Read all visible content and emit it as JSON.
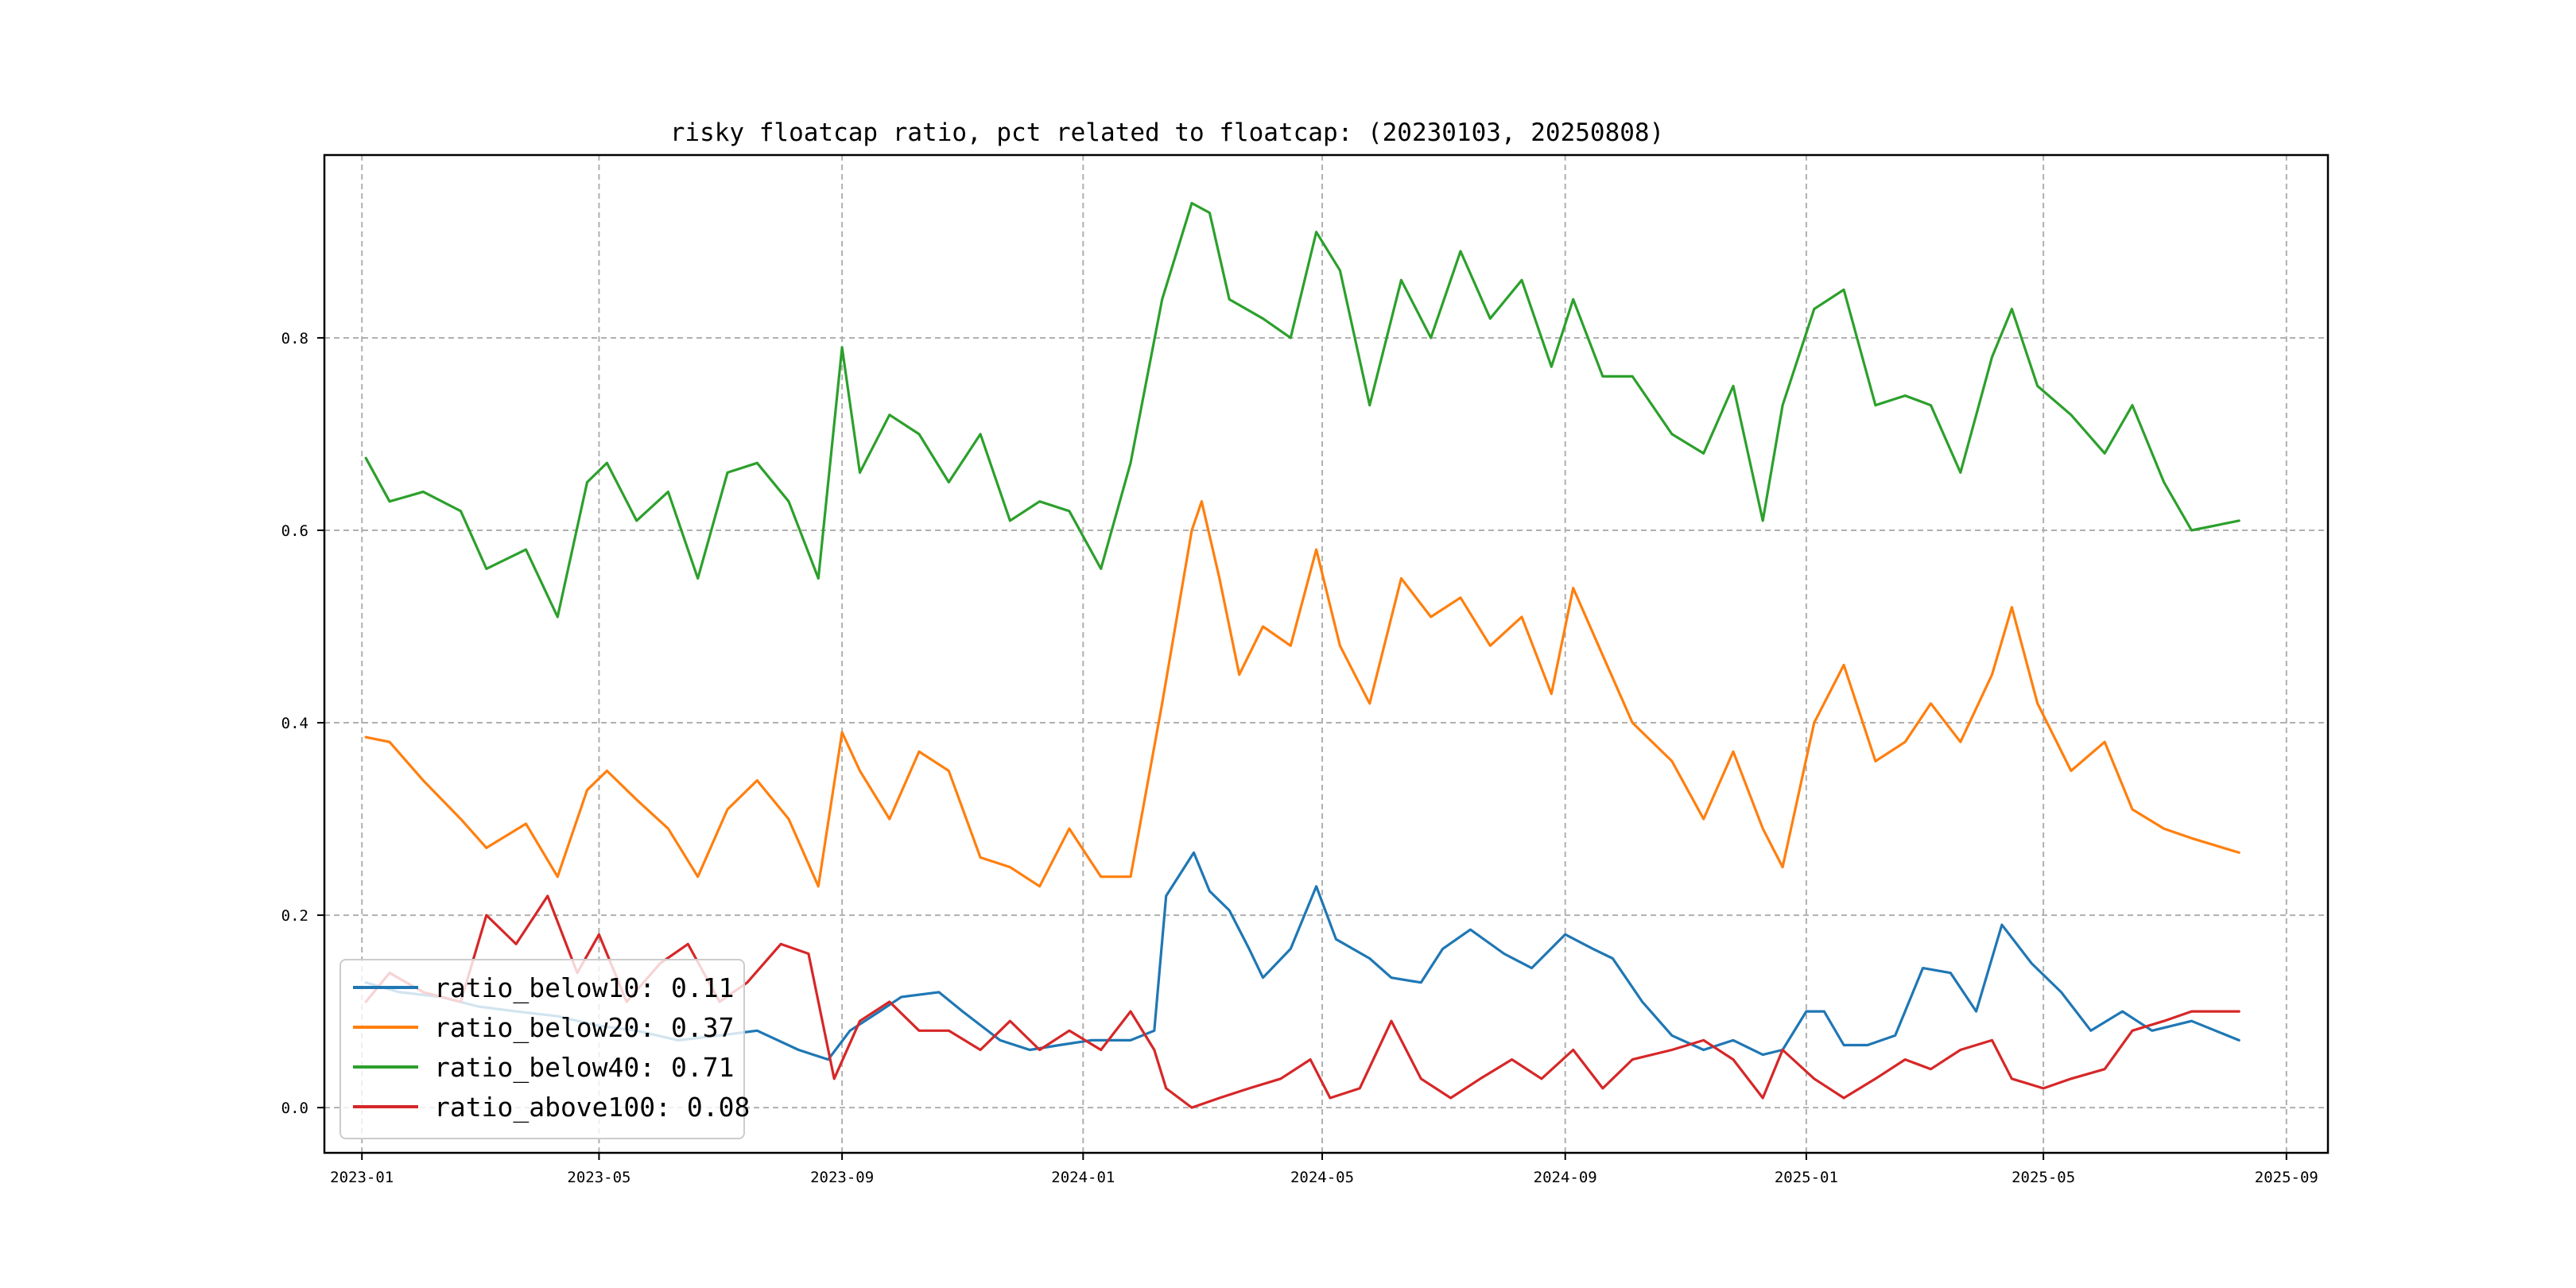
{
  "chart_data": {
    "type": "line",
    "title": "risky floatcap ratio, pct related to floatcap: (20230103, 20250808)",
    "xlabel": "",
    "ylabel": "",
    "x_range": [
      "2022-12-13",
      "2025-09-22"
    ],
    "ylim": [
      -0.047,
      0.99
    ],
    "grid": true,
    "legend_position": "lower-left",
    "x_ticks": [
      {
        "label": "2023-01",
        "date": "2023-01-01"
      },
      {
        "label": "2023-05",
        "date": "2023-05-01"
      },
      {
        "label": "2023-09",
        "date": "2023-09-01"
      },
      {
        "label": "2024-01",
        "date": "2024-01-01"
      },
      {
        "label": "2024-05",
        "date": "2024-05-01"
      },
      {
        "label": "2024-09",
        "date": "2024-09-01"
      },
      {
        "label": "2025-01",
        "date": "2025-01-01"
      },
      {
        "label": "2025-05",
        "date": "2025-05-01"
      },
      {
        "label": "2025-09",
        "date": "2025-09-01"
      }
    ],
    "y_ticks": [
      {
        "label": "0.0",
        "value": 0.0
      },
      {
        "label": "0.2",
        "value": 0.2
      },
      {
        "label": "0.4",
        "value": 0.4
      },
      {
        "label": "0.6",
        "value": 0.6
      },
      {
        "label": "0.8",
        "value": 0.8
      }
    ],
    "series": [
      {
        "name": "ratio_below10",
        "legend_label": "ratio_below10: 0.11",
        "color": "#1f77b4",
        "points": [
          [
            "2023-01-03",
            0.13
          ],
          [
            "2023-01-20",
            0.12
          ],
          [
            "2023-02-10",
            0.115
          ],
          [
            "2023-03-01",
            0.105
          ],
          [
            "2023-03-20",
            0.1
          ],
          [
            "2023-04-10",
            0.095
          ],
          [
            "2023-05-01",
            0.085
          ],
          [
            "2023-05-20",
            0.08
          ],
          [
            "2023-06-10",
            0.07
          ],
          [
            "2023-07-01",
            0.075
          ],
          [
            "2023-07-20",
            0.08
          ],
          [
            "2023-08-10",
            0.06
          ],
          [
            "2023-08-25",
            0.05
          ],
          [
            "2023-09-05",
            0.08
          ],
          [
            "2023-09-20",
            0.1
          ],
          [
            "2023-10-01",
            0.115
          ],
          [
            "2023-10-20",
            0.12
          ],
          [
            "2023-11-01",
            0.1
          ],
          [
            "2023-11-20",
            0.07
          ],
          [
            "2023-12-05",
            0.06
          ],
          [
            "2023-12-20",
            0.065
          ],
          [
            "2024-01-05",
            0.07
          ],
          [
            "2024-01-25",
            0.07
          ],
          [
            "2024-02-06",
            0.08
          ],
          [
            "2024-02-12",
            0.22
          ],
          [
            "2024-02-26",
            0.265
          ],
          [
            "2024-03-05",
            0.225
          ],
          [
            "2024-03-15",
            0.205
          ],
          [
            "2024-03-25",
            0.165
          ],
          [
            "2024-04-01",
            0.135
          ],
          [
            "2024-04-15",
            0.165
          ],
          [
            "2024-04-28",
            0.23
          ],
          [
            "2024-05-08",
            0.175
          ],
          [
            "2024-05-25",
            0.155
          ],
          [
            "2024-06-05",
            0.135
          ],
          [
            "2024-06-20",
            0.13
          ],
          [
            "2024-07-01",
            0.165
          ],
          [
            "2024-07-15",
            0.185
          ],
          [
            "2024-08-01",
            0.16
          ],
          [
            "2024-08-15",
            0.145
          ],
          [
            "2024-09-01",
            0.18
          ],
          [
            "2024-09-15",
            0.165
          ],
          [
            "2024-09-25",
            0.155
          ],
          [
            "2024-10-10",
            0.11
          ],
          [
            "2024-10-25",
            0.075
          ],
          [
            "2024-11-10",
            0.06
          ],
          [
            "2024-11-25",
            0.07
          ],
          [
            "2024-12-10",
            0.055
          ],
          [
            "2024-12-20",
            0.06
          ],
          [
            "2025-01-01",
            0.1
          ],
          [
            "2025-01-10",
            0.1
          ],
          [
            "2025-01-20",
            0.065
          ],
          [
            "2025-02-01",
            0.065
          ],
          [
            "2025-02-15",
            0.075
          ],
          [
            "2025-03-01",
            0.145
          ],
          [
            "2025-03-15",
            0.14
          ],
          [
            "2025-03-28",
            0.1
          ],
          [
            "2025-04-10",
            0.19
          ],
          [
            "2025-04-25",
            0.15
          ],
          [
            "2025-05-10",
            0.12
          ],
          [
            "2025-05-25",
            0.08
          ],
          [
            "2025-06-10",
            0.1
          ],
          [
            "2025-06-25",
            0.08
          ],
          [
            "2025-07-15",
            0.09
          ],
          [
            "2025-08-08",
            0.07
          ]
        ]
      },
      {
        "name": "ratio_below20",
        "legend_label": "ratio_below20: 0.37",
        "color": "#ff7f0e",
        "points": [
          [
            "2023-01-03",
            0.385
          ],
          [
            "2023-01-15",
            0.38
          ],
          [
            "2023-02-01",
            0.34
          ],
          [
            "2023-02-20",
            0.3
          ],
          [
            "2023-03-05",
            0.27
          ],
          [
            "2023-03-25",
            0.295
          ],
          [
            "2023-04-10",
            0.24
          ],
          [
            "2023-04-25",
            0.33
          ],
          [
            "2023-05-05",
            0.35
          ],
          [
            "2023-05-20",
            0.32
          ],
          [
            "2023-06-05",
            0.29
          ],
          [
            "2023-06-20",
            0.24
          ],
          [
            "2023-07-05",
            0.31
          ],
          [
            "2023-07-20",
            0.34
          ],
          [
            "2023-08-05",
            0.3
          ],
          [
            "2023-08-20",
            0.23
          ],
          [
            "2023-09-01",
            0.39
          ],
          [
            "2023-09-10",
            0.35
          ],
          [
            "2023-09-25",
            0.3
          ],
          [
            "2023-10-10",
            0.37
          ],
          [
            "2023-10-25",
            0.35
          ],
          [
            "2023-11-10",
            0.26
          ],
          [
            "2023-11-25",
            0.25
          ],
          [
            "2023-12-10",
            0.23
          ],
          [
            "2023-12-25",
            0.29
          ],
          [
            "2024-01-10",
            0.24
          ],
          [
            "2024-01-25",
            0.24
          ],
          [
            "2024-02-10",
            0.42
          ],
          [
            "2024-02-25",
            0.6
          ],
          [
            "2024-03-01",
            0.63
          ],
          [
            "2024-03-10",
            0.55
          ],
          [
            "2024-03-20",
            0.45
          ],
          [
            "2024-04-01",
            0.5
          ],
          [
            "2024-04-15",
            0.48
          ],
          [
            "2024-04-28",
            0.58
          ],
          [
            "2024-05-10",
            0.48
          ],
          [
            "2024-05-25",
            0.42
          ],
          [
            "2024-06-10",
            0.55
          ],
          [
            "2024-06-25",
            0.51
          ],
          [
            "2024-07-10",
            0.53
          ],
          [
            "2024-07-25",
            0.48
          ],
          [
            "2024-08-10",
            0.51
          ],
          [
            "2024-08-25",
            0.43
          ],
          [
            "2024-09-05",
            0.54
          ],
          [
            "2024-09-20",
            0.47
          ],
          [
            "2024-10-05",
            0.4
          ],
          [
            "2024-10-25",
            0.36
          ],
          [
            "2024-11-10",
            0.3
          ],
          [
            "2024-11-25",
            0.37
          ],
          [
            "2024-12-10",
            0.29
          ],
          [
            "2024-12-20",
            0.25
          ],
          [
            "2025-01-05",
            0.4
          ],
          [
            "2025-01-20",
            0.46
          ],
          [
            "2025-02-05",
            0.36
          ],
          [
            "2025-02-20",
            0.38
          ],
          [
            "2025-03-05",
            0.42
          ],
          [
            "2025-03-20",
            0.38
          ],
          [
            "2025-04-05",
            0.45
          ],
          [
            "2025-04-15",
            0.52
          ],
          [
            "2025-04-28",
            0.42
          ],
          [
            "2025-05-15",
            0.35
          ],
          [
            "2025-06-01",
            0.38
          ],
          [
            "2025-06-15",
            0.31
          ],
          [
            "2025-07-01",
            0.29
          ],
          [
            "2025-07-15",
            0.28
          ],
          [
            "2025-08-08",
            0.265
          ]
        ]
      },
      {
        "name": "ratio_below40",
        "legend_label": "ratio_below40: 0.71",
        "color": "#2ca02c",
        "points": [
          [
            "2023-01-03",
            0.675
          ],
          [
            "2023-01-15",
            0.63
          ],
          [
            "2023-02-01",
            0.64
          ],
          [
            "2023-02-20",
            0.62
          ],
          [
            "2023-03-05",
            0.56
          ],
          [
            "2023-03-25",
            0.58
          ],
          [
            "2023-04-10",
            0.51
          ],
          [
            "2023-04-25",
            0.65
          ],
          [
            "2023-05-05",
            0.67
          ],
          [
            "2023-05-20",
            0.61
          ],
          [
            "2023-06-05",
            0.64
          ],
          [
            "2023-06-20",
            0.55
          ],
          [
            "2023-07-05",
            0.66
          ],
          [
            "2023-07-20",
            0.67
          ],
          [
            "2023-08-05",
            0.63
          ],
          [
            "2023-08-20",
            0.55
          ],
          [
            "2023-09-01",
            0.79
          ],
          [
            "2023-09-10",
            0.66
          ],
          [
            "2023-09-25",
            0.72
          ],
          [
            "2023-10-10",
            0.7
          ],
          [
            "2023-10-25",
            0.65
          ],
          [
            "2023-11-10",
            0.7
          ],
          [
            "2023-11-25",
            0.61
          ],
          [
            "2023-12-10",
            0.63
          ],
          [
            "2023-12-25",
            0.62
          ],
          [
            "2024-01-10",
            0.56
          ],
          [
            "2024-01-25",
            0.67
          ],
          [
            "2024-02-10",
            0.84
          ],
          [
            "2024-02-25",
            0.94
          ],
          [
            "2024-03-05",
            0.93
          ],
          [
            "2024-03-15",
            0.84
          ],
          [
            "2024-04-01",
            0.82
          ],
          [
            "2024-04-15",
            0.8
          ],
          [
            "2024-04-28",
            0.91
          ],
          [
            "2024-05-10",
            0.87
          ],
          [
            "2024-05-25",
            0.73
          ],
          [
            "2024-06-10",
            0.86
          ],
          [
            "2024-06-25",
            0.8
          ],
          [
            "2024-07-10",
            0.89
          ],
          [
            "2024-07-25",
            0.82
          ],
          [
            "2024-08-10",
            0.86
          ],
          [
            "2024-08-25",
            0.77
          ],
          [
            "2024-09-05",
            0.84
          ],
          [
            "2024-09-20",
            0.76
          ],
          [
            "2024-10-05",
            0.76
          ],
          [
            "2024-10-25",
            0.7
          ],
          [
            "2024-11-10",
            0.68
          ],
          [
            "2024-11-25",
            0.75
          ],
          [
            "2024-12-10",
            0.61
          ],
          [
            "2024-12-20",
            0.73
          ],
          [
            "2025-01-05",
            0.83
          ],
          [
            "2025-01-20",
            0.85
          ],
          [
            "2025-02-05",
            0.73
          ],
          [
            "2025-02-20",
            0.74
          ],
          [
            "2025-03-05",
            0.73
          ],
          [
            "2025-03-20",
            0.66
          ],
          [
            "2025-04-05",
            0.78
          ],
          [
            "2025-04-15",
            0.83
          ],
          [
            "2025-04-28",
            0.75
          ],
          [
            "2025-05-15",
            0.72
          ],
          [
            "2025-06-01",
            0.68
          ],
          [
            "2025-06-15",
            0.73
          ],
          [
            "2025-07-01",
            0.65
          ],
          [
            "2025-07-15",
            0.6
          ],
          [
            "2025-08-08",
            0.61
          ]
        ]
      },
      {
        "name": "ratio_above100",
        "legend_label": "ratio_above100: 0.08",
        "color": "#d62728",
        "points": [
          [
            "2023-01-03",
            0.11
          ],
          [
            "2023-01-15",
            0.14
          ],
          [
            "2023-02-01",
            0.12
          ],
          [
            "2023-02-20",
            0.11
          ],
          [
            "2023-03-05",
            0.2
          ],
          [
            "2023-03-20",
            0.17
          ],
          [
            "2023-04-05",
            0.22
          ],
          [
            "2023-04-20",
            0.14
          ],
          [
            "2023-05-01",
            0.18
          ],
          [
            "2023-05-15",
            0.11
          ],
          [
            "2023-06-01",
            0.15
          ],
          [
            "2023-06-15",
            0.17
          ],
          [
            "2023-07-01",
            0.11
          ],
          [
            "2023-07-15",
            0.13
          ],
          [
            "2023-08-01",
            0.17
          ],
          [
            "2023-08-15",
            0.16
          ],
          [
            "2023-08-28",
            0.03
          ],
          [
            "2023-09-10",
            0.09
          ],
          [
            "2023-09-25",
            0.11
          ],
          [
            "2023-10-10",
            0.08
          ],
          [
            "2023-10-25",
            0.08
          ],
          [
            "2023-11-10",
            0.06
          ],
          [
            "2023-11-25",
            0.09
          ],
          [
            "2023-12-10",
            0.06
          ],
          [
            "2023-12-25",
            0.08
          ],
          [
            "2024-01-10",
            0.06
          ],
          [
            "2024-01-25",
            0.1
          ],
          [
            "2024-02-06",
            0.06
          ],
          [
            "2024-02-12",
            0.02
          ],
          [
            "2024-02-25",
            0.0
          ],
          [
            "2024-03-10",
            0.01
          ],
          [
            "2024-03-25",
            0.02
          ],
          [
            "2024-04-10",
            0.03
          ],
          [
            "2024-04-25",
            0.05
          ],
          [
            "2024-05-05",
            0.01
          ],
          [
            "2024-05-20",
            0.02
          ],
          [
            "2024-06-05",
            0.09
          ],
          [
            "2024-06-20",
            0.03
          ],
          [
            "2024-07-05",
            0.01
          ],
          [
            "2024-07-20",
            0.03
          ],
          [
            "2024-08-05",
            0.05
          ],
          [
            "2024-08-20",
            0.03
          ],
          [
            "2024-09-05",
            0.06
          ],
          [
            "2024-09-20",
            0.02
          ],
          [
            "2024-10-05",
            0.05
          ],
          [
            "2024-10-25",
            0.06
          ],
          [
            "2024-11-10",
            0.07
          ],
          [
            "2024-11-25",
            0.05
          ],
          [
            "2024-12-10",
            0.01
          ],
          [
            "2024-12-20",
            0.06
          ],
          [
            "2025-01-05",
            0.03
          ],
          [
            "2025-01-20",
            0.01
          ],
          [
            "2025-02-05",
            0.03
          ],
          [
            "2025-02-20",
            0.05
          ],
          [
            "2025-03-05",
            0.04
          ],
          [
            "2025-03-20",
            0.06
          ],
          [
            "2025-04-05",
            0.07
          ],
          [
            "2025-04-15",
            0.03
          ],
          [
            "2025-05-01",
            0.02
          ],
          [
            "2025-05-15",
            0.03
          ],
          [
            "2025-06-01",
            0.04
          ],
          [
            "2025-06-15",
            0.08
          ],
          [
            "2025-07-01",
            0.09
          ],
          [
            "2025-07-15",
            0.1
          ],
          [
            "2025-08-08",
            0.1
          ]
        ]
      }
    ]
  }
}
